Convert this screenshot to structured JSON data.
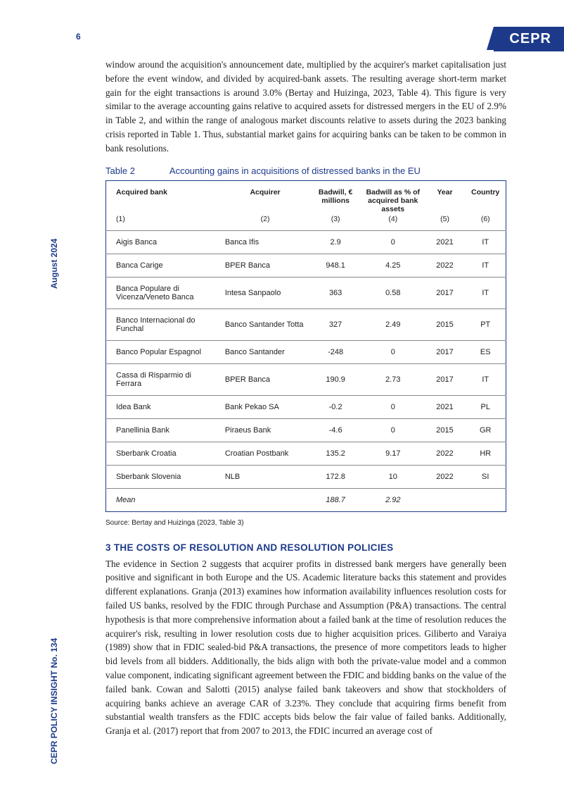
{
  "page_number": "6",
  "brand": "CEPR",
  "side_date": "August 2024",
  "side_title": "CEPR POLICY INSIGHT No. 134",
  "paragraph_top": "window around the acquisition's announcement date, multiplied by the acquirer's market capitalisation just before the event window, and divided by acquired-bank assets. The resulting average short-term market gain for the eight transactions is around 3.0% (Bertay and Huizinga, 2023, Table 4). This figure is very similar to the average accounting gains relative to acquired assets for distressed mergers in the EU of 2.9% in Table 2, and within the range of analogous market discounts relative to assets during the 2023 banking crisis reported in Table 1. Thus, substantial market gains for acquiring banks can be taken to be common in bank resolutions.",
  "table": {
    "caption_label": "Table 2",
    "caption_text": "Accounting gains in acquisitions of distressed banks in the EU",
    "columns": [
      {
        "head": "Acquired bank",
        "sub": "(1)"
      },
      {
        "head": "Acquirer",
        "sub": "(2)"
      },
      {
        "head": "Badwill, € millions",
        "sub": "(3)"
      },
      {
        "head": "Badwill as % of acquired bank assets",
        "sub": "(4)"
      },
      {
        "head": "Year",
        "sub": "(5)"
      },
      {
        "head": "Country",
        "sub": "(6)"
      }
    ],
    "rows": [
      [
        "Aigis Banca",
        "Banca Ifis",
        "2.9",
        "0",
        "2021",
        "IT"
      ],
      [
        "Banca Carige",
        "BPER Banca",
        "948.1",
        "4.25",
        "2022",
        "IT"
      ],
      [
        "Banca Populare di Vicenza/Veneto Banca",
        "Intesa Sanpaolo",
        "363",
        "0.58",
        "2017",
        "IT"
      ],
      [
        "Banco Internacional do Funchal",
        "Banco Santander Totta",
        "327",
        "2.49",
        "2015",
        "PT"
      ],
      [
        "Banco Popular Espagnol",
        "Banco Santander",
        "-248",
        "0",
        "2017",
        "ES"
      ],
      [
        "Cassa di Risparmio di Ferrara",
        "BPER Banca",
        "190.9",
        "2.73",
        "2017",
        "IT"
      ],
      [
        "Idea Bank",
        "Bank Pekao SA",
        "-0.2",
        "0",
        "2021",
        "PL"
      ],
      [
        "Panellinia Bank",
        "Piraeus Bank",
        "-4.6",
        "0",
        "2015",
        "GR"
      ],
      [
        "Sberbank Croatia",
        "Croatian Postbank",
        "135.2",
        "9.17",
        "2022",
        "HR"
      ],
      [
        "Sberbank Slovenia",
        "NLB",
        "172.8",
        "10",
        "2022",
        "SI"
      ]
    ],
    "mean_row": [
      "Mean",
      "",
      "188.7",
      "2.92",
      "",
      ""
    ],
    "source": "Source:  Bertay and Huizinga (2023, Table 3)"
  },
  "section_heading": "3 THE COSTS OF RESOLUTION AND RESOLUTION POLICIES",
  "paragraph_bottom": "The evidence in Section 2 suggests that acquirer profits in distressed bank mergers have generally been positive and significant in both Europe and the US. Academic literature backs this statement and provides different explanations. Granja (2013) examines how information availability influences resolution costs for failed US banks, resolved by the FDIC through Purchase and Assumption (P&A) transactions. The central hypothesis is that more comprehensive information about a failed bank at the time of resolution reduces the acquirer's risk, resulting in lower resolution costs due to higher acquisition prices. Giliberto and Varaiya (1989) show that in FDIC sealed-bid P&A transactions, the presence of more competitors leads to higher bid levels from all bidders. Additionally, the bids align with both the private-value model and a common value component, indicating significant agreement between the FDIC and bidding banks on the value of the failed bank. Cowan and Salotti (2015) analyse failed bank takeovers and show that stockholders of acquiring banks achieve an average CAR of 3.23%. They conclude that acquiring firms benefit from substantial wealth transfers as the FDIC accepts bids below the fair value of failed banks. Additionally, Granja et al. (2017) report that from 2007 to 2013, the FDIC incurred an average cost of"
}
